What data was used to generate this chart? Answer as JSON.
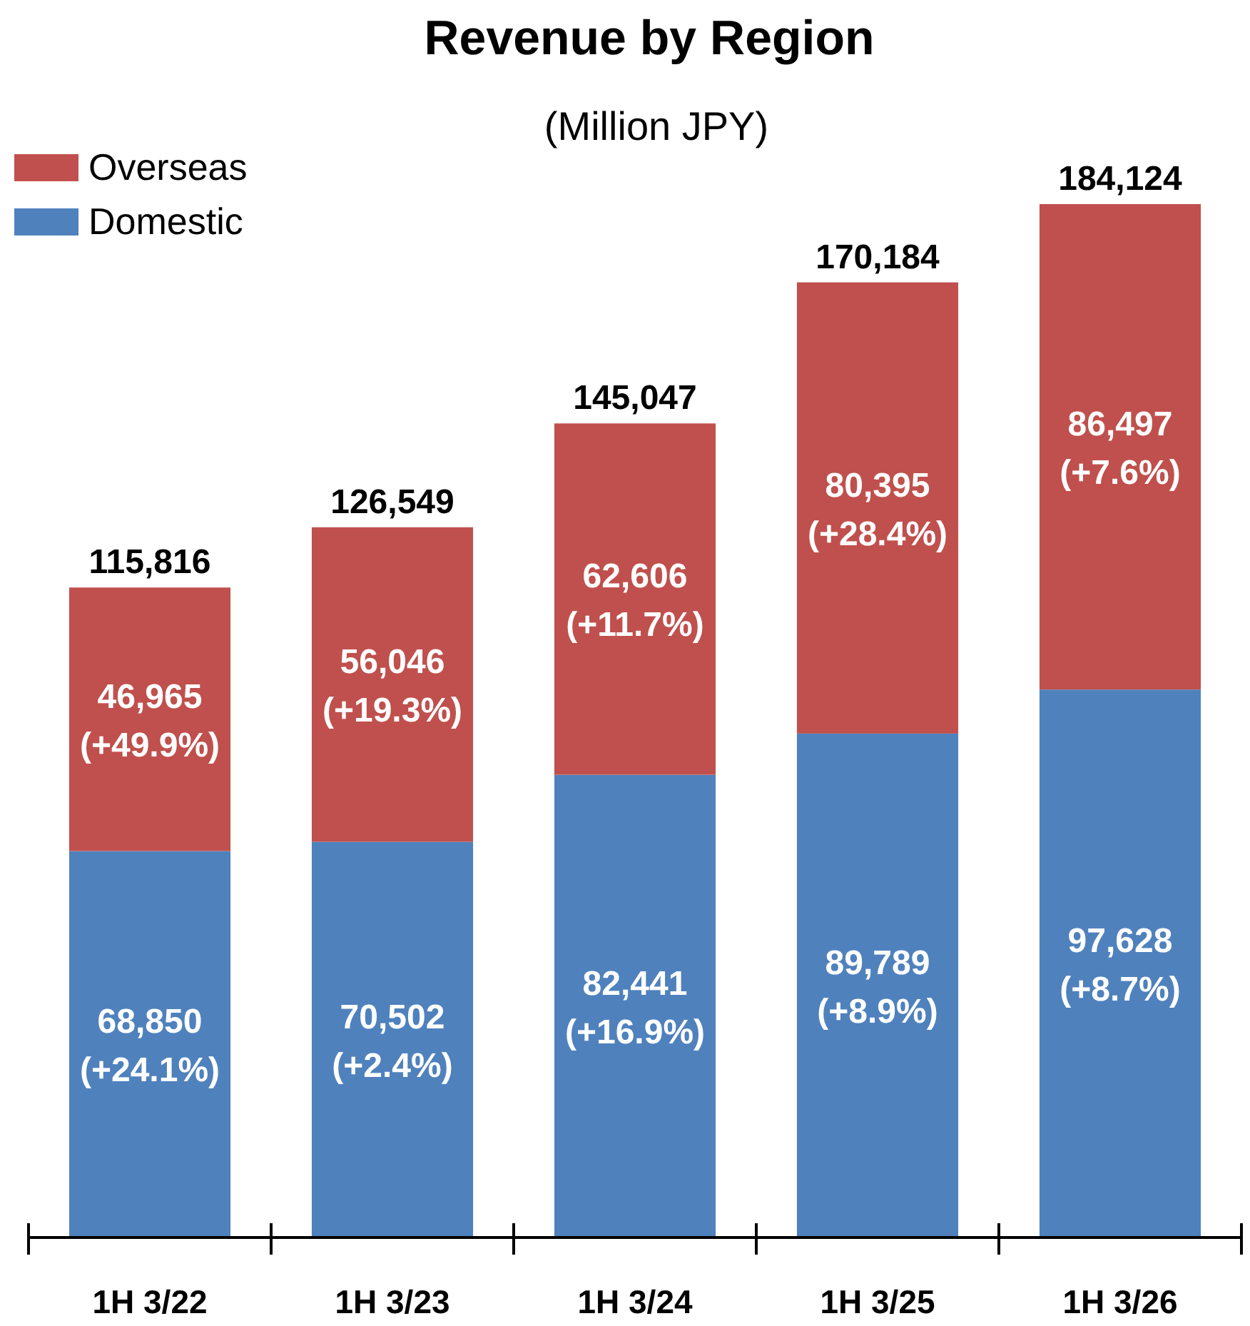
{
  "chart_data": {
    "type": "bar",
    "title": "Revenue by Region",
    "subtitle": "(Million JPY)",
    "categories": [
      "1H 3/22",
      "1H 3/23",
      "1H 3/24",
      "1H 3/25",
      "1H 3/26"
    ],
    "stacked": true,
    "legend": "top left",
    "series": [
      {
        "name": "Domestic",
        "color": "#4f81bd",
        "values": [
          68850,
          70502,
          82441,
          89789,
          97628
        ],
        "value_labels": [
          "68,850\n(+24.1%)",
          "70,502\n(+2.4%)",
          "82,441\n(+16.9%)",
          "89,789\n(+8.9%)",
          "97,628\n(+8.7%)"
        ]
      },
      {
        "name": "Overseas",
        "color": "#c0504d",
        "values": [
          46965,
          56046,
          62606,
          80395,
          86497
        ],
        "value_labels": [
          "46,965\n(+49.9%)",
          "56,046\n(+19.3%)",
          "62,606\n(+11.7%)",
          "80,395\n(+28.4%)",
          "86,497\n(+7.6%)"
        ]
      }
    ],
    "totals": [
      "115,816",
      "126,549",
      "145,047",
      "170,184",
      "184,124"
    ]
  }
}
